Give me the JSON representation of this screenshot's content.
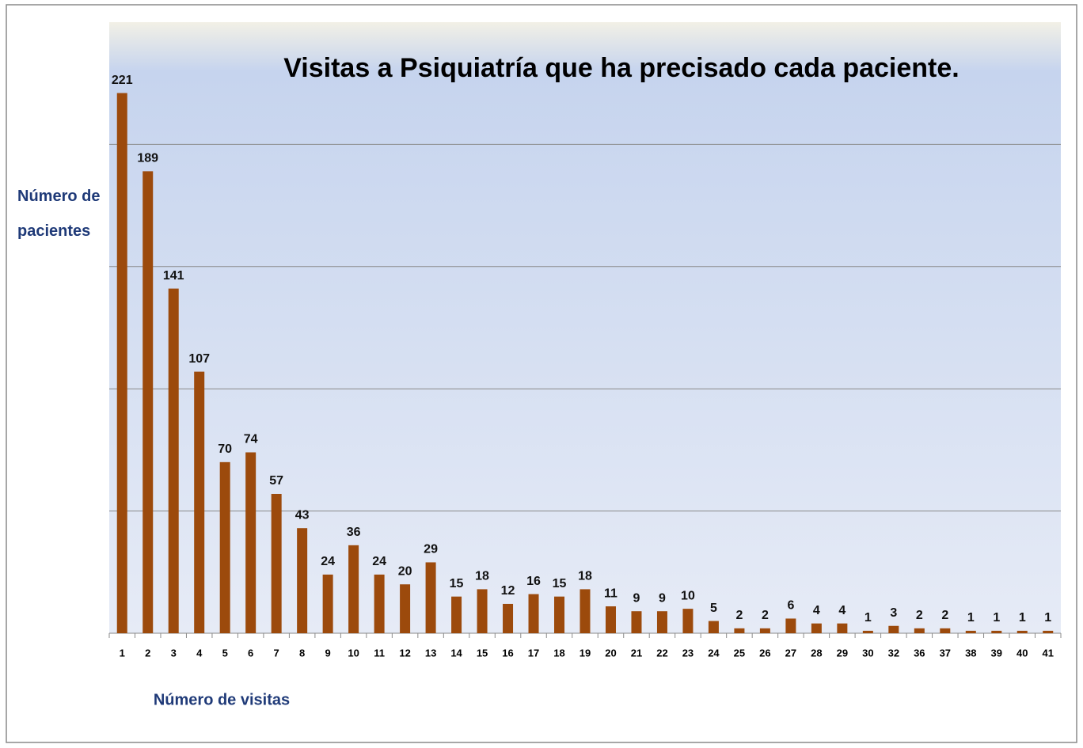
{
  "chart_data": {
    "type": "bar",
    "title": "Visitas  a Psiquiatría que ha precisado cada paciente.",
    "y_label": "Número de pacientes",
    "x_label": "Número de visitas",
    "categories": [
      "1",
      "2",
      "3",
      "4",
      "5",
      "6",
      "7",
      "8",
      "9",
      "10",
      "11",
      "12",
      "13",
      "14",
      "15",
      "16",
      "17",
      "18",
      "19",
      "20",
      "21",
      "22",
      "23",
      "24",
      "25",
      "26",
      "27",
      "28",
      "29",
      "30",
      "32",
      "36",
      "37",
      "38",
      "39",
      "40",
      "41"
    ],
    "values": [
      221,
      189,
      141,
      107,
      70,
      74,
      57,
      43,
      24,
      36,
      24,
      20,
      29,
      15,
      18,
      12,
      16,
      15,
      18,
      11,
      9,
      9,
      10,
      5,
      2,
      2,
      6,
      4,
      4,
      1,
      3,
      2,
      2,
      1,
      1,
      1,
      1
    ],
    "color": "#9c4a0c",
    "ylim": [
      0,
      250
    ],
    "yticks": [
      0,
      50,
      100,
      150,
      200
    ],
    "grid": true
  }
}
